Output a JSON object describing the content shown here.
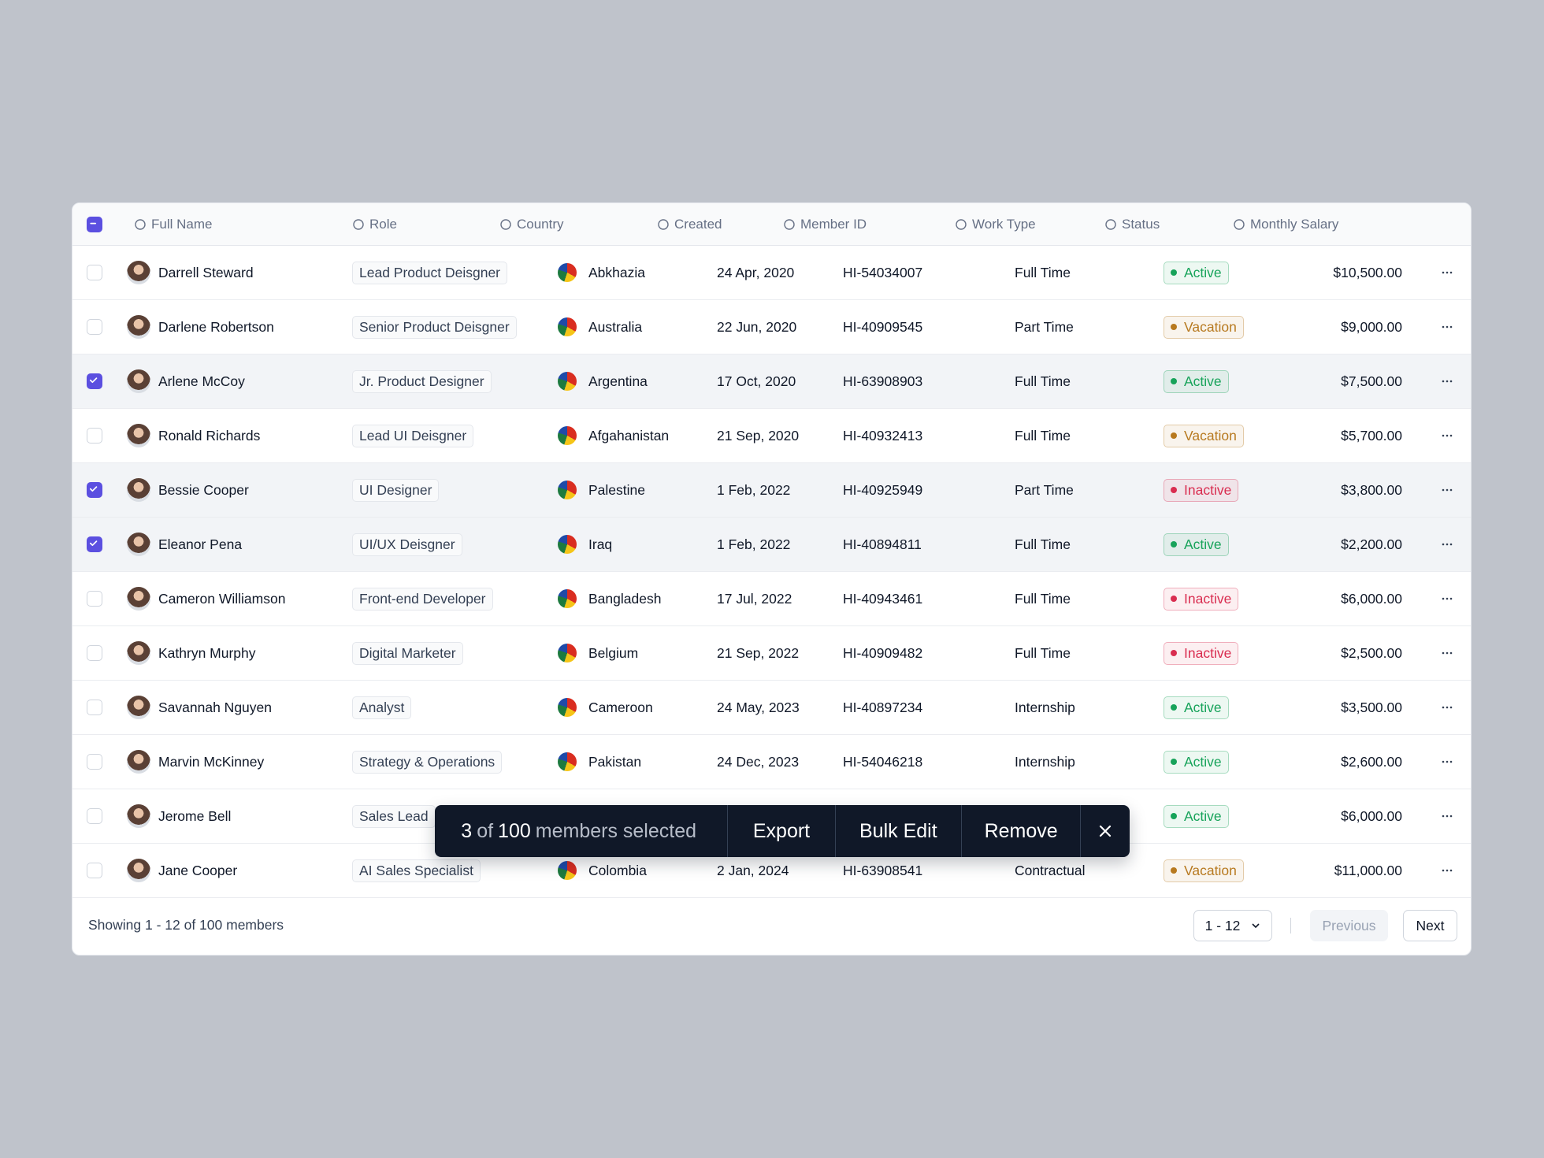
{
  "header": {
    "columns": [
      "Full Name",
      "Role",
      "Country",
      "Created",
      "Member ID",
      "Work Type",
      "Status",
      "Monthly Salary"
    ]
  },
  "status_colors": {
    "Active": "#17a35a",
    "Vacation": "#b7791f",
    "Inactive": "#d92d50"
  },
  "table": {
    "rows": [
      {
        "selected": false,
        "name": "Darrell Steward",
        "role": "Lead Product Deisgner",
        "country": "Abkhazia",
        "created": "24 Apr, 2020",
        "member_id": "HI-54034007",
        "work_type": "Full Time",
        "status": "Active",
        "salary": "$10,500.00"
      },
      {
        "selected": false,
        "name": "Darlene Robertson",
        "role": "Senior Product Deisgner",
        "country": "Australia",
        "created": "22 Jun, 2020",
        "member_id": "HI-40909545",
        "work_type": "Part Time",
        "status": "Vacation",
        "salary": "$9,000.00"
      },
      {
        "selected": true,
        "name": "Arlene McCoy",
        "role": "Jr. Product Designer",
        "country": "Argentina",
        "created": "17 Oct, 2020",
        "member_id": "HI-63908903",
        "work_type": "Full Time",
        "status": "Active",
        "salary": "$7,500.00"
      },
      {
        "selected": false,
        "name": "Ronald Richards",
        "role": "Lead UI Deisgner",
        "country": "Afgahanistan",
        "created": "21 Sep, 2020",
        "member_id": "HI-40932413",
        "work_type": "Full Time",
        "status": "Vacation",
        "salary": "$5,700.00"
      },
      {
        "selected": true,
        "name": "Bessie Cooper",
        "role": "UI Designer",
        "country": "Palestine",
        "created": "1 Feb, 2022",
        "member_id": "HI-40925949",
        "work_type": "Part Time",
        "status": "Inactive",
        "salary": "$3,800.00"
      },
      {
        "selected": true,
        "name": "Eleanor Pena",
        "role": "UI/UX Deisgner",
        "country": "Iraq",
        "created": "1 Feb, 2022",
        "member_id": "HI-40894811",
        "work_type": "Full Time",
        "status": "Active",
        "salary": "$2,200.00"
      },
      {
        "selected": false,
        "name": "Cameron Williamson",
        "role": "Front-end Developer",
        "country": "Bangladesh",
        "created": "17 Jul, 2022",
        "member_id": "HI-40943461",
        "work_type": "Full Time",
        "status": "Inactive",
        "salary": "$6,000.00"
      },
      {
        "selected": false,
        "name": "Kathryn Murphy",
        "role": "Digital Marketer",
        "country": "Belgium",
        "created": "21 Sep, 2022",
        "member_id": "HI-40909482",
        "work_type": "Full Time",
        "status": "Inactive",
        "salary": "$2,500.00"
      },
      {
        "selected": false,
        "name": "Savannah Nguyen",
        "role": "Analyst",
        "country": "Cameroon",
        "created": "24 May, 2023",
        "member_id": "HI-40897234",
        "work_type": "Internship",
        "status": "Active",
        "salary": "$3,500.00"
      },
      {
        "selected": false,
        "name": "Marvin McKinney",
        "role": "Strategy & Operations",
        "country": "Pakistan",
        "created": "24 Dec, 2023",
        "member_id": "HI-54046218",
        "work_type": "Internship",
        "status": "Active",
        "salary": "$2,600.00"
      },
      {
        "selected": false,
        "name": "Jerome Bell",
        "role": "Sales Lead",
        "country": "",
        "created": "",
        "member_id": "",
        "work_type": "",
        "status": "Active",
        "salary": "$6,000.00"
      },
      {
        "selected": false,
        "name": "Jane Cooper",
        "role": "AI Sales Specialist",
        "country": "Colombia",
        "created": "2 Jan, 2024",
        "member_id": "HI-63908541",
        "work_type": "Contractual",
        "status": "Vacation",
        "salary": "$11,000.00"
      }
    ]
  },
  "footer": {
    "showing": "Showing 1 - 12 of 100 members",
    "page_size": "1 - 12",
    "previous": "Previous",
    "next": "Next"
  },
  "toolbar": {
    "count": 3,
    "of": "of",
    "total": 100,
    "label": "members selected",
    "actions": [
      "Export",
      "Bulk Edit",
      "Remove"
    ]
  }
}
